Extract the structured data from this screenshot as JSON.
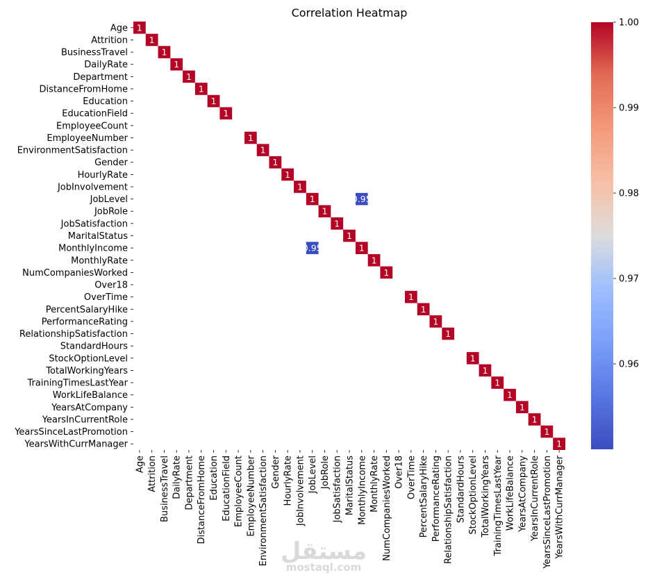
{
  "chart_data": {
    "type": "heatmap",
    "title": "Correlation Heatmap",
    "labels": [
      "Age",
      "Attrition",
      "BusinessTravel",
      "DailyRate",
      "Department",
      "DistanceFromHome",
      "Education",
      "EducationField",
      "EmployeeCount",
      "EmployeeNumber",
      "EnvironmentSatisfaction",
      "Gender",
      "HourlyRate",
      "JobInvolvement",
      "JobLevel",
      "JobRole",
      "JobSatisfaction",
      "MaritalStatus",
      "MonthlyIncome",
      "MonthlyRate",
      "NumCompaniesWorked",
      "Over18",
      "OverTime",
      "PercentSalaryHike",
      "PerformanceRating",
      "RelationshipSatisfaction",
      "StandardHours",
      "StockOptionLevel",
      "TotalWorkingYears",
      "TrainingTimesLastYear",
      "WorkLifeBalance",
      "YearsAtCompany",
      "YearsInCurrentRole",
      "YearsSinceLastPromotion",
      "YearsWithCurrManager"
    ],
    "empty_labels": [
      "EmployeeCount",
      "Over18",
      "StandardHours"
    ],
    "cells": [
      {
        "row": "JobLevel",
        "col": "MonthlyIncome",
        "value": 0.95,
        "label": "0.95"
      },
      {
        "row": "MonthlyIncome",
        "col": "JobLevel",
        "value": 0.95,
        "label": "0.95"
      }
    ],
    "diagonal_value": 1,
    "diagonal_label": "1",
    "colormap": "coolwarm",
    "color_low": "#3b4cc0",
    "color_high": "#b40426",
    "colorbar": {
      "min": 0.95,
      "max": 1.0,
      "ticks": [
        0.96,
        0.97,
        0.98,
        0.99,
        1.0
      ],
      "tick_labels": [
        "0.96",
        "0.97",
        "0.98",
        "0.99",
        "1.00"
      ]
    }
  },
  "watermark": {
    "arabic": "مستقل",
    "latin": "mostaql.com"
  }
}
